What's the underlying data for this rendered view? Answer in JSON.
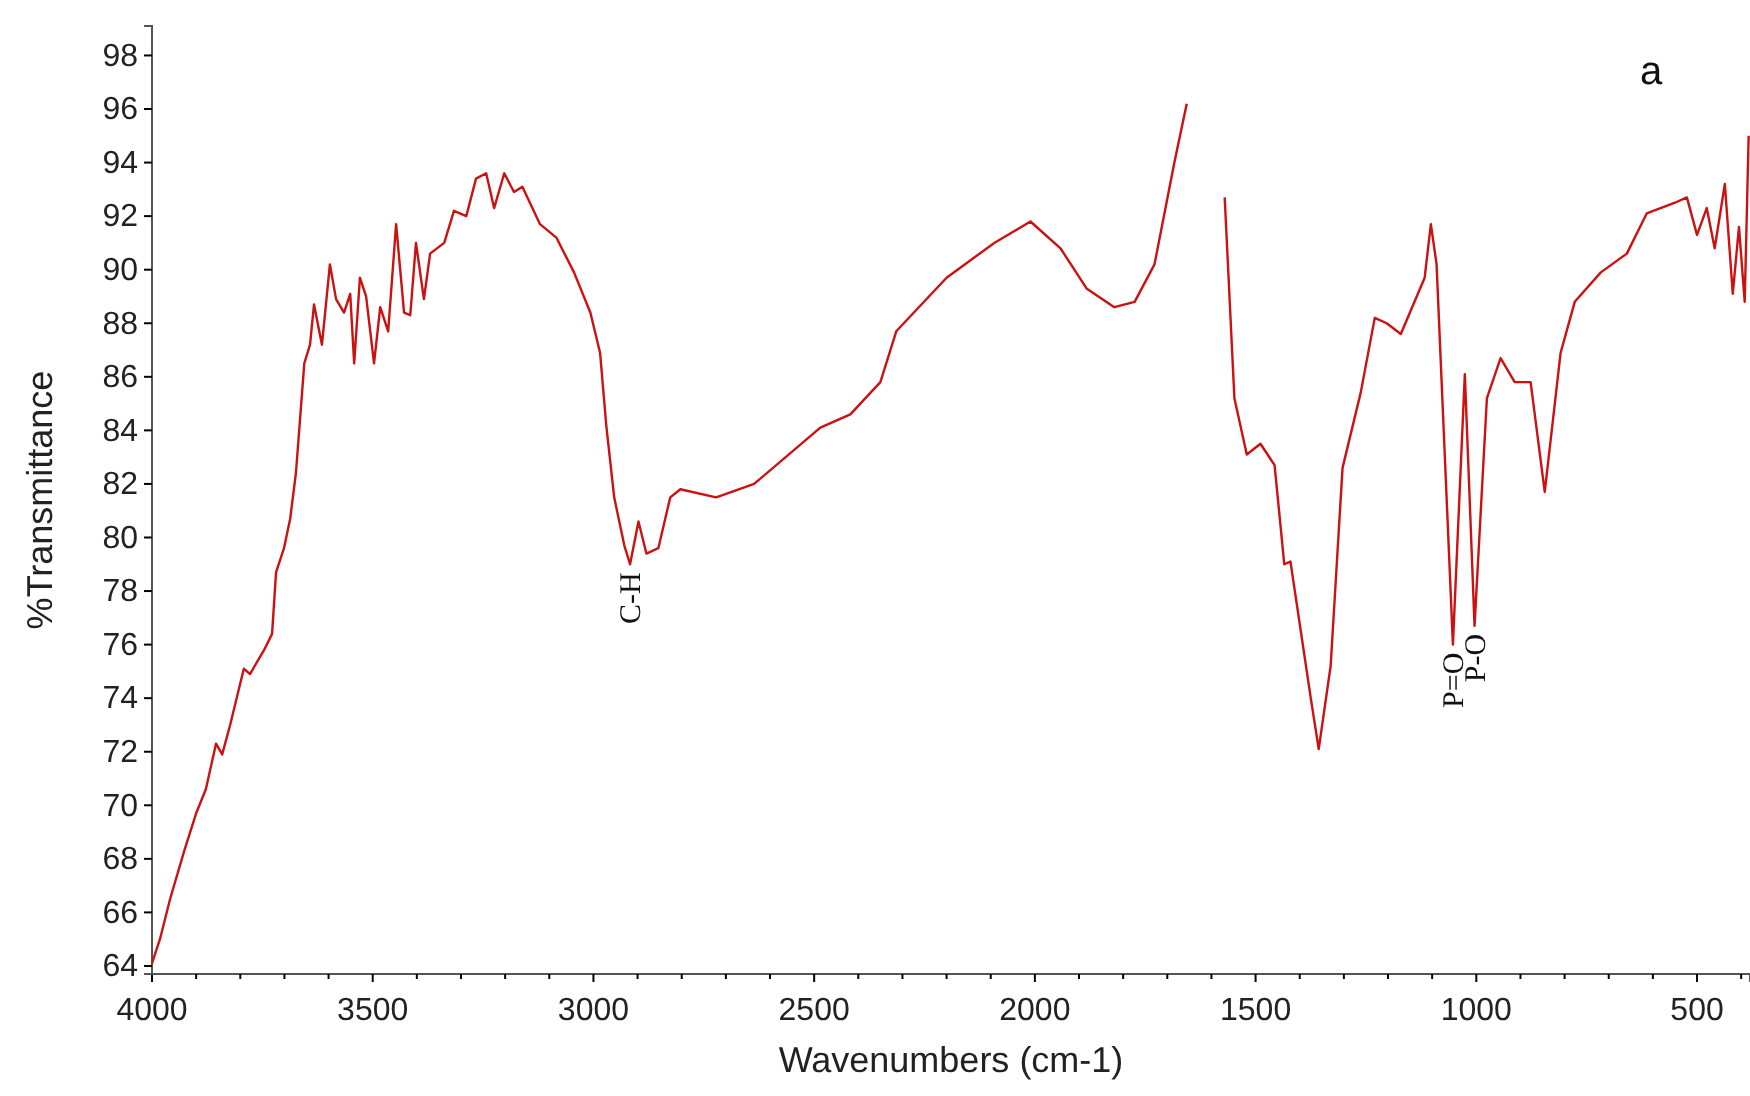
{
  "chart_data": {
    "type": "line",
    "xlabel": "Wavenumbers (cm-1)",
    "ylabel": "%Transmittance",
    "xlim": [
      4000,
      380
    ],
    "ylim": [
      63.7,
      99.1
    ],
    "xticks": [
      4000,
      {
        "value": 3900,
        "label": null
      },
      {
        "value": 3800,
        "label": null
      },
      {
        "value": 3700,
        "label": null
      },
      {
        "value": 3600,
        "label": null
      },
      3500,
      {
        "value": 3400,
        "label": null
      },
      {
        "value": 3300,
        "label": null
      },
      {
        "value": 3200,
        "label": null
      },
      {
        "value": 3100,
        "label": null
      },
      3000,
      {
        "value": 2900,
        "label": null
      },
      {
        "value": 2800,
        "label": null
      },
      {
        "value": 2700,
        "label": null
      },
      {
        "value": 2600,
        "label": null
      },
      2500,
      {
        "value": 2400,
        "label": null
      },
      {
        "value": 2300,
        "label": null
      },
      {
        "value": 2200,
        "label": null
      },
      {
        "value": 2100,
        "label": null
      },
      2000,
      {
        "value": 1900,
        "label": null
      },
      {
        "value": 1800,
        "label": null
      },
      {
        "value": 1700,
        "label": null
      },
      {
        "value": 1600,
        "label": null
      },
      1500,
      {
        "value": 1400,
        "label": null
      },
      {
        "value": 1300,
        "label": null
      },
      {
        "value": 1200,
        "label": null
      },
      {
        "value": 1100,
        "label": null
      },
      1000,
      {
        "value": 900,
        "label": null
      },
      {
        "value": 800,
        "label": null
      },
      {
        "value": 700,
        "label": null
      },
      {
        "value": 600,
        "label": null
      },
      500,
      {
        "value": 400,
        "label": null
      }
    ],
    "yticks": [
      64,
      66,
      68,
      70,
      72,
      74,
      76,
      78,
      80,
      82,
      84,
      86,
      88,
      90,
      92,
      94,
      96,
      98
    ],
    "grid": false,
    "marker": "none",
    "line_style": "solid",
    "annotations": [
      "a",
      {
        "text": "C-H",
        "x": 2917,
        "y": 79.0
      },
      {
        "text": "P=O",
        "x": 1053,
        "y": 76.0
      },
      {
        "text": "P-O",
        "x": 1004,
        "y": 76.7
      }
    ],
    "series": [
      {
        "color": "#cc1111",
        "x": [
          4000,
          3982,
          3959,
          3927,
          3900,
          3878,
          3855,
          3841,
          3823,
          3792,
          3778,
          3746,
          3728,
          3719,
          3701,
          3687,
          3674,
          3655,
          3642,
          3633,
          3615,
          3597,
          3583,
          3565,
          3551,
          3542,
          3529,
          3515,
          3497,
          3483,
          3465,
          3447,
          3429,
          3415,
          3402,
          3384,
          3370,
          3338,
          3316,
          3288,
          3266,
          3243,
          3225,
          3202,
          3180,
          3161,
          3121,
          3084,
          3044,
          3007,
          2985,
          2971,
          2953,
          2930,
          2917,
          2898,
          2880,
          2853,
          2826,
          2803,
          2722,
          2636,
          2486,
          2418,
          2350,
          2314,
          2200,
          2092,
          2010,
          1942,
          1883,
          1820,
          1774,
          1729,
          1684,
          1656,
          1634,
          1625,
          1602,
          1570,
          1548,
          1520,
          1489,
          1457,
          1435,
          1421,
          1375,
          1357,
          1330,
          1303,
          1262,
          1230,
          1203,
          1171,
          1117,
          1103,
          1090,
          1053,
          1026,
          1004,
          976,
          945,
          913,
          877,
          845,
          809,
          777,
          718,
          659,
          614,
          550,
          523,
          500,
          478,
          460,
          437,
          419,
          405,
          392,
          383
        ],
        "values": [
          64.1,
          65.0,
          66.5,
          68.3,
          69.7,
          70.6,
          72.3,
          71.9,
          73.0,
          75.1,
          74.9,
          75.8,
          76.4,
          78.7,
          79.6,
          80.7,
          82.4,
          86.5,
          87.2,
          88.7,
          87.2,
          90.2,
          88.9,
          88.4,
          89.1,
          86.5,
          89.7,
          89.0,
          86.5,
          88.6,
          87.7,
          91.7,
          88.4,
          88.3,
          91.0,
          88.9,
          90.6,
          91.0,
          92.2,
          92.0,
          93.4,
          93.6,
          92.3,
          93.6,
          92.9,
          93.1,
          91.7,
          91.2,
          89.9,
          88.4,
          86.9,
          84.2,
          81.5,
          79.7,
          79.0,
          80.6,
          79.4,
          79.6,
          81.5,
          81.8,
          81.5,
          82.0,
          84.1,
          84.6,
          85.8,
          87.7,
          89.7,
          91.0,
          91.8,
          90.8,
          89.3,
          88.6,
          88.8,
          90.2,
          94.0,
          96.2,
          null,
          null,
          null,
          92.7,
          85.2,
          83.1,
          83.5,
          82.7,
          79.0,
          79.1,
          74.0,
          72.1,
          75.2,
          82.6,
          85.4,
          88.2,
          88.0,
          87.6,
          89.7,
          91.7,
          90.2,
          76.0,
          86.1,
          76.7,
          85.2,
          86.7,
          85.8,
          85.8,
          81.7,
          86.9,
          88.8,
          89.9,
          90.6,
          92.1,
          92.5,
          92.7,
          91.3,
          92.3,
          90.8,
          93.2,
          89.1,
          91.6,
          88.8,
          95.0
        ]
      }
    ]
  }
}
